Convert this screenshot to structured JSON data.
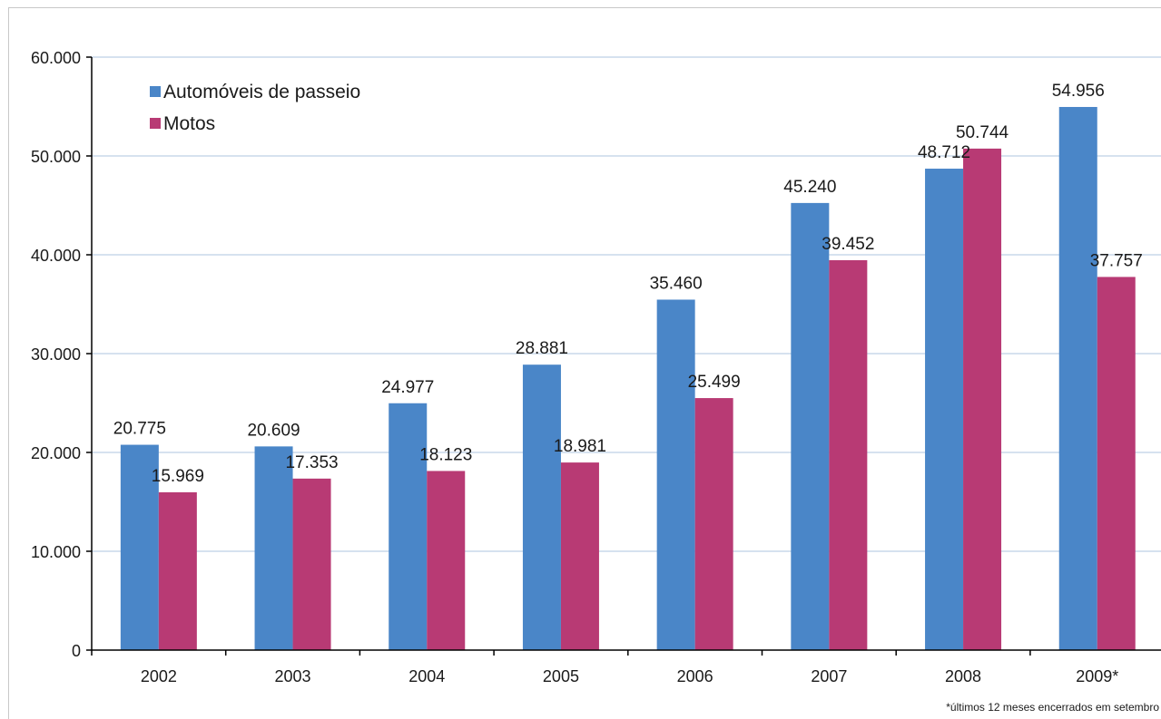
{
  "chart_data": {
    "type": "bar",
    "title": "",
    "xlabel": "",
    "ylabel": "",
    "categories": [
      "2002",
      "2003",
      "2004",
      "2005",
      "2006",
      "2007",
      "2008",
      "2009*"
    ],
    "series": [
      {
        "name": "Automóveis de passeio",
        "color": "#4a86c8",
        "values": [
          20775,
          20609,
          24977,
          28881,
          35460,
          45240,
          48712,
          54956
        ],
        "labels": [
          "20.775",
          "20.609",
          "24.977",
          "28.881",
          "35.460",
          "45.240",
          "48.712",
          "54.956"
        ]
      },
      {
        "name": "Motos",
        "color": "#b83a74",
        "values": [
          15969,
          17353,
          18123,
          18981,
          25499,
          39452,
          50744,
          37757
        ],
        "labels": [
          "15.969",
          "17.353",
          "18.123",
          "18.981",
          "25.499",
          "39.452",
          "50.744",
          "37.757"
        ]
      }
    ],
    "ylim": [
      0,
      60000
    ],
    "yticks": [
      0,
      10000,
      20000,
      30000,
      40000,
      50000,
      60000
    ],
    "ytick_labels": [
      "0",
      "10.000",
      "20.000",
      "30.000",
      "40.000",
      "50.000",
      "60.000"
    ],
    "grid": true,
    "gridline_color": "#c9d9ea",
    "legend_position": "top-left",
    "footnote": "*últimos 12 meses encerrados em setembro"
  }
}
